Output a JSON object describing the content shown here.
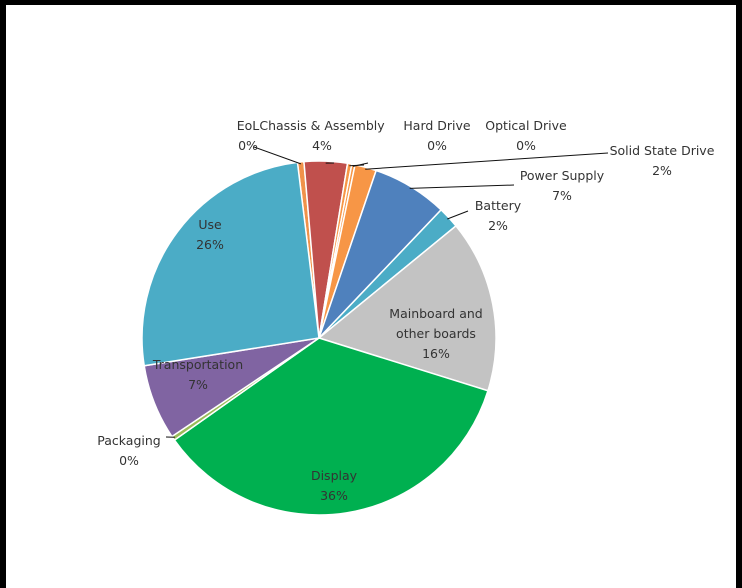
{
  "chart_data": {
    "type": "pie",
    "title": "",
    "slices": [
      {
        "label": "EoL",
        "value": 0,
        "display": "0%",
        "color": "#f0924a",
        "sweep_share": 0.6
      },
      {
        "label": "Chassis & Assembly",
        "value": 4,
        "display": "4%",
        "color": "#c0504d"
      },
      {
        "label": "Hard Drive",
        "value": 0,
        "display": "0%",
        "color": "#f79646",
        "sweep_share": 0.4
      },
      {
        "label": "Optical Drive",
        "value": 0,
        "display": "0%",
        "color": "#f79646",
        "sweep_share": 0.3
      },
      {
        "label": "Solid State Drive",
        "value": 2,
        "display": "2%",
        "color": "#f79646"
      },
      {
        "label": "Power Supply",
        "value": 7,
        "display": "7%",
        "color": "#4f81bd"
      },
      {
        "label": "Battery",
        "value": 2,
        "display": "2%",
        "color": "#4bacc6"
      },
      {
        "label": "Mainboard and other boards",
        "label_lines": [
          "Mainboard and",
          "other boards"
        ],
        "value": 16,
        "display": "16%",
        "color": "#c3c3c3"
      },
      {
        "label": "Display",
        "value": 36,
        "display": "36%",
        "color": "#00b050"
      },
      {
        "label": "Packaging",
        "value": 0,
        "display": "0%",
        "color": "#9bbb59",
        "sweep_share": 0.4
      },
      {
        "label": "Transportation",
        "value": 7,
        "display": "7%",
        "color": "#8064a2"
      },
      {
        "label": "Use",
        "value": 26,
        "display": "26%",
        "color": "#4bacc6"
      }
    ],
    "legend": "none",
    "data_labels": "category name and percentage"
  }
}
